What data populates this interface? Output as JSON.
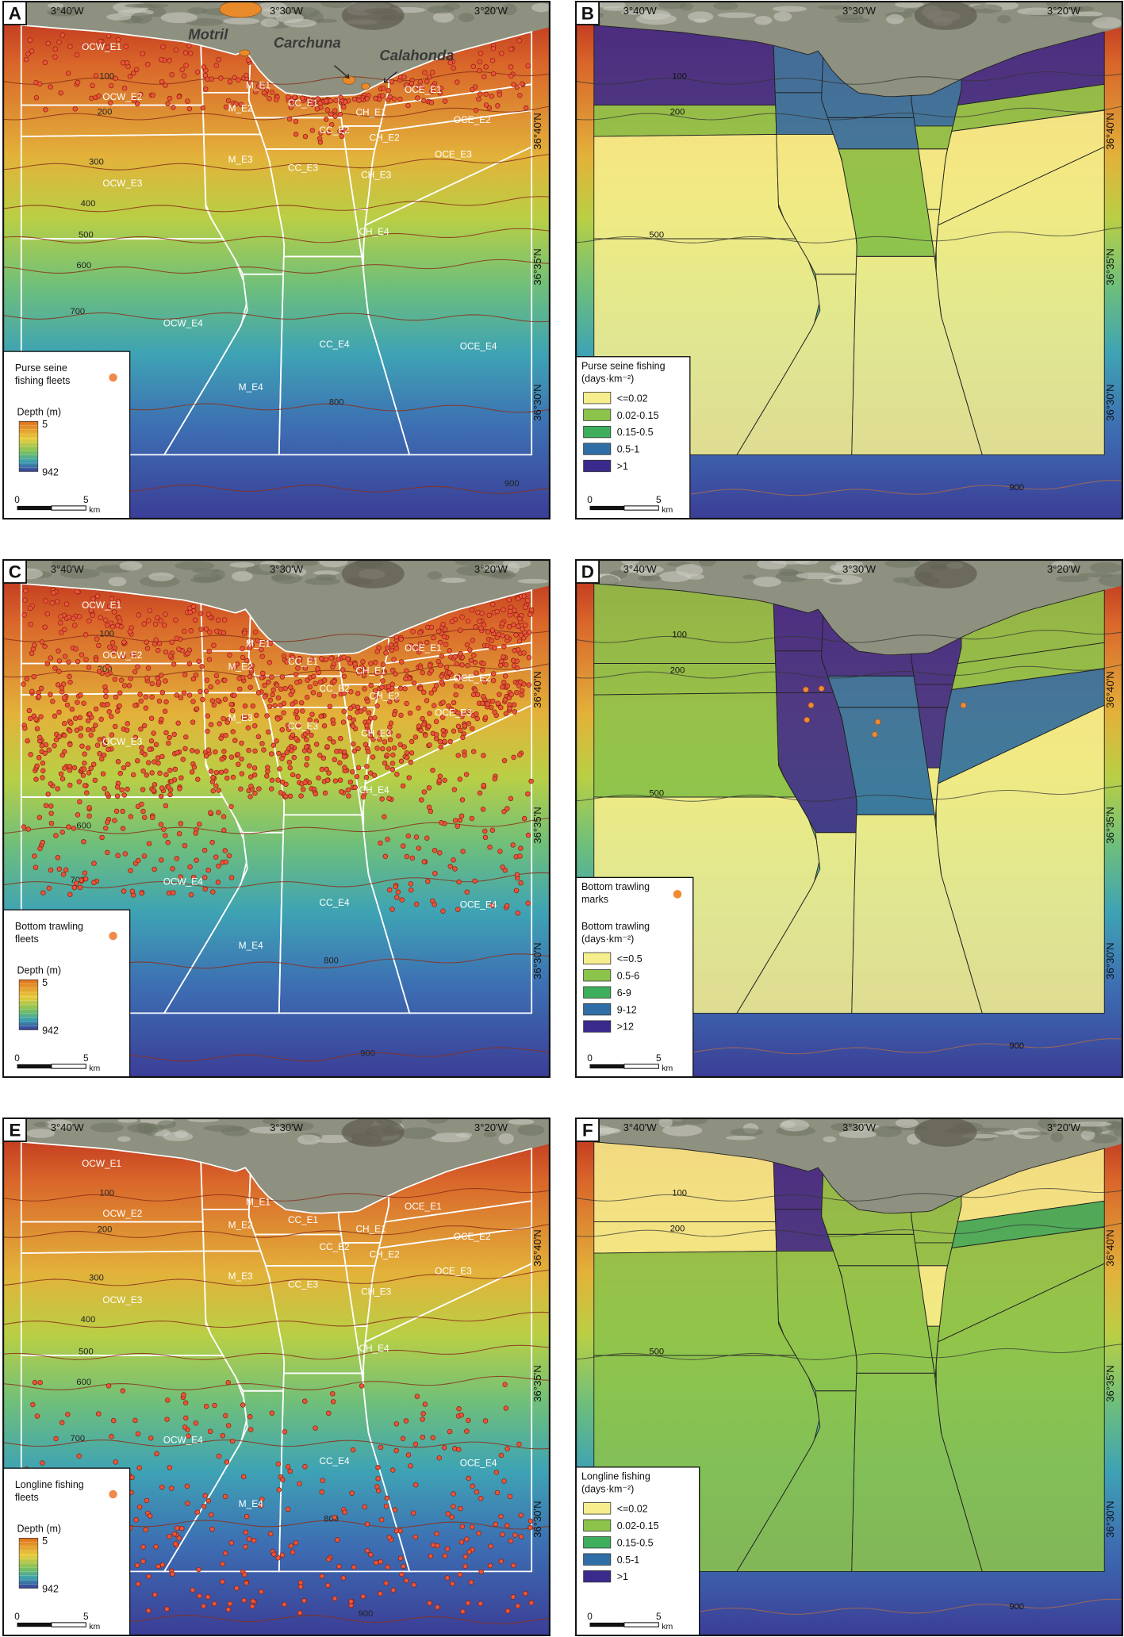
{
  "panels": [
    {
      "letter": "A",
      "lon_labels": [
        "3°40'W",
        "3°30'W",
        "3°20'W"
      ],
      "lat_labels": [
        "36°40'N",
        "36°35'N",
        "36°30'N"
      ],
      "place_names": [
        "Motril",
        "Carchuna",
        "Calahonda"
      ],
      "zones": [
        "OCW_E1",
        "OCW_E2",
        "OCW_E3",
        "OCW_E4",
        "M_E1",
        "M_E2",
        "M_E3",
        "M_E4",
        "CC_E1",
        "CC_E2",
        "CC_E3",
        "CC_E4",
        "CH_E1",
        "CH_E2",
        "CH_E3",
        "CH_E4",
        "OCE_E1",
        "OCE_E2",
        "OCE_E3",
        "OCE_E4"
      ],
      "contours": [
        100,
        200,
        300,
        400,
        500,
        600,
        700,
        800,
        900
      ],
      "legend": {
        "title": [
          "Purse seine",
          "fishing fleets"
        ],
        "depth_title": "Depth (m)",
        "depth_range": [
          5,
          942
        ],
        "scale": [
          0,
          5,
          "km"
        ]
      }
    },
    {
      "letter": "B",
      "lon_labels": [
        "3°40'W",
        "3°30'W",
        "3°20'W"
      ],
      "lat_labels": [
        "36°40'N",
        "36°35'N",
        "36°30'N"
      ],
      "contours": [
        100,
        200,
        500,
        900
      ],
      "legend": {
        "title": [
          "Purse seine fishing",
          "(days·km⁻²)"
        ],
        "classes": [
          {
            "label": "<=0.02",
            "color": "#f6ee8d"
          },
          {
            "label": "0.02-0.15",
            "color": "#8cc34b"
          },
          {
            "label": "0.15-0.5",
            "color": "#3eae5d"
          },
          {
            "label": "0.5-1",
            "color": "#2f6ea6"
          },
          {
            "label": ">1",
            "color": "#3a2a8c"
          }
        ],
        "scale": [
          0,
          5,
          "km"
        ]
      }
    },
    {
      "letter": "C",
      "lon_labels": [
        "3°40'W",
        "3°30'W",
        "3°20'W"
      ],
      "lat_labels": [
        "36°40'N",
        "36°35'N",
        "36°30'N"
      ],
      "zones": [
        "OCW_E1",
        "OCW_E2",
        "OCW_E3",
        "OCW_E4",
        "M_E1",
        "M_E2",
        "M_E3",
        "M_E4",
        "CC_E1",
        "CC_E2",
        "CC_E3",
        "CC_E4",
        "CH_E1",
        "CH_E2",
        "CH_E3",
        "CH_E4",
        "OCE_E1",
        "OCE_E2",
        "OCE_E3",
        "OCE_E4"
      ],
      "contours": [
        100,
        200,
        600,
        700,
        800,
        900
      ],
      "legend": {
        "title": [
          "Bottom trawling",
          "fleets"
        ],
        "depth_title": "Depth (m)",
        "depth_range": [
          5,
          942
        ],
        "scale": [
          0,
          5,
          "km"
        ]
      }
    },
    {
      "letter": "D",
      "lon_labels": [
        "3°40'W",
        "3°30'W",
        "3°20'W"
      ],
      "lat_labels": [
        "36°40'N",
        "36°35'N",
        "36°30'N"
      ],
      "contours": [
        100,
        200,
        500,
        900
      ],
      "legend": {
        "marks_title": [
          "Bottom trawling",
          "marks"
        ],
        "title": [
          "Bottom trawling",
          "(days·km⁻²)"
        ],
        "classes": [
          {
            "label": "<=0.5",
            "color": "#f6ee8d"
          },
          {
            "label": "0.5-6",
            "color": "#8cc34b"
          },
          {
            "label": "6-9",
            "color": "#3eae5d"
          },
          {
            "label": "9-12",
            "color": "#2f6ea6"
          },
          {
            "label": ">12",
            "color": "#3a2a8c"
          }
        ],
        "scale": [
          0,
          5,
          "km"
        ]
      }
    },
    {
      "letter": "E",
      "lon_labels": [
        "3°40'W",
        "3°30'W",
        "3°20'W"
      ],
      "lat_labels": [
        "36°40'N",
        "36°35'N",
        "36°30'N"
      ],
      "zones": [
        "OCW_E1",
        "OCW_E2",
        "OCW_E3",
        "OCW_E4",
        "M_E1",
        "M_E2",
        "M_E3",
        "M_E4",
        "CC_E1",
        "CC_E2",
        "CC_E3",
        "CC_E4",
        "CH_E1",
        "CH_E2",
        "CH_E3",
        "CH_E4",
        "OCE_E1",
        "OCE_E2",
        "OCE_E3",
        "OCE_E4"
      ],
      "contours": [
        100,
        200,
        300,
        400,
        500,
        600,
        700,
        800,
        900
      ],
      "legend": {
        "title": [
          "Longline fishing",
          "fleets"
        ],
        "depth_title": "Depth (m)",
        "depth_range": [
          5,
          942
        ],
        "scale": [
          0,
          5,
          "km"
        ]
      }
    },
    {
      "letter": "F",
      "lon_labels": [
        "3°40'W",
        "3°30'W",
        "3°20'W"
      ],
      "lat_labels": [
        "36°40'N",
        "36°35'N",
        "36°30'N"
      ],
      "contours": [
        100,
        200,
        500,
        900
      ],
      "legend": {
        "title": [
          "Longline fishing",
          "(days·km⁻²)"
        ],
        "classes": [
          {
            "label": "<=0.02",
            "color": "#f6ee8d"
          },
          {
            "label": "0.02-0.15",
            "color": "#8cc34b"
          },
          {
            "label": "0.15-0.5",
            "color": "#3eae5d"
          },
          {
            "label": "0.5-1",
            "color": "#2f6ea6"
          },
          {
            "label": ">1",
            "color": "#3a2a8c"
          }
        ],
        "scale": [
          0,
          5,
          "km"
        ]
      }
    }
  ]
}
